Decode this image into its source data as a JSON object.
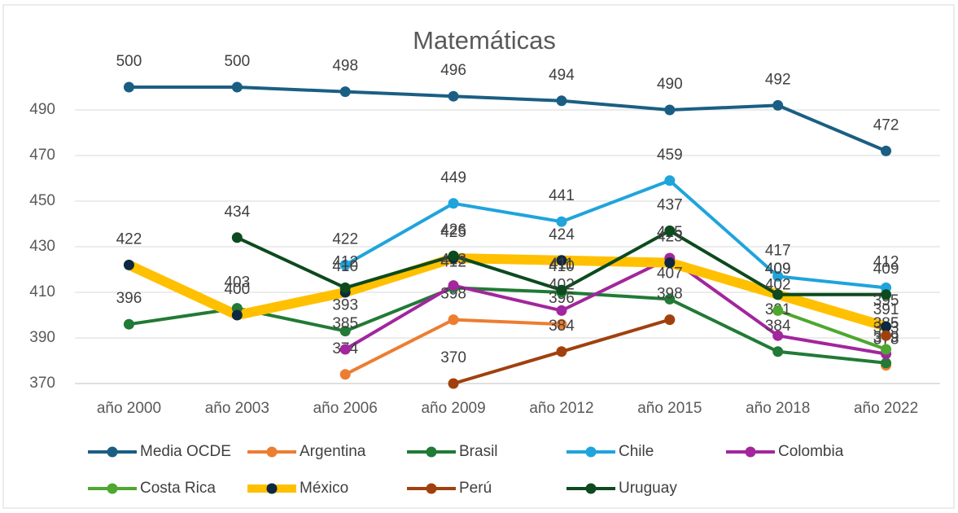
{
  "chart_data": {
    "type": "line",
    "title": "Matemáticas",
    "categories": [
      "año 2000",
      "año 2003",
      "año 2006",
      "año 2009",
      "año 2012",
      "año 2015",
      "año 2018",
      "año 2022"
    ],
    "ylim": [
      370,
      500
    ],
    "yticks": [
      370,
      390,
      410,
      430,
      450,
      470,
      490
    ],
    "grid": true,
    "legend": "bottom",
    "series": [
      {
        "name": "Media OCDE",
        "color": "#1b5e83",
        "values": [
          500,
          500,
          498,
          496,
          494,
          490,
          492,
          472
        ]
      },
      {
        "name": "Argentina",
        "color": "#ed7d31",
        "values": [
          null,
          null,
          374,
          398,
          396,
          null,
          null,
          378
        ]
      },
      {
        "name": "Brasil",
        "color": "#217a35",
        "values": [
          396,
          403,
          393,
          412,
          410,
          407,
          384,
          379
        ]
      },
      {
        "name": "Chile",
        "color": "#1fa4dc",
        "values": [
          null,
          null,
          422,
          449,
          441,
          459,
          417,
          412
        ]
      },
      {
        "name": "Colombia",
        "color": "#a2269d",
        "values": [
          null,
          null,
          385,
          413,
          402,
          425,
          391,
          383
        ]
      },
      {
        "name": "Costa Rica",
        "color": "#4ea72e",
        "values": [
          null,
          null,
          null,
          null,
          null,
          null,
          402,
          385
        ]
      },
      {
        "name": "México",
        "color": "#ffc000",
        "marker_color": "#0e2841",
        "line_width": 12,
        "values": [
          422,
          400,
          410,
          425,
          424,
          423,
          409,
          395
        ]
      },
      {
        "name": "Perú",
        "color": "#a0410d",
        "values": [
          null,
          null,
          null,
          370,
          384,
          398,
          null,
          391
        ]
      },
      {
        "name": "Uruguay",
        "color": "#0d4a1e",
        "values": [
          null,
          434,
          412,
          426,
          411,
          437,
          409,
          409
        ]
      }
    ]
  }
}
